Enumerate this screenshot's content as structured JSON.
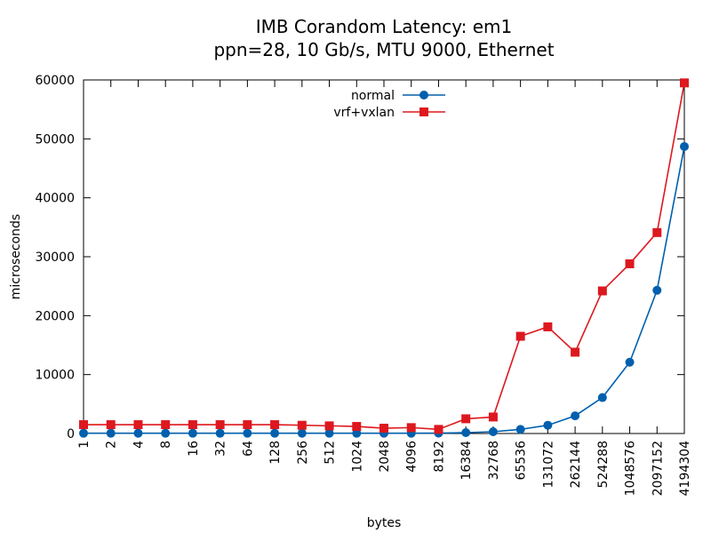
{
  "chart_data": {
    "type": "line",
    "title": "IMB Corandom Latency: em1",
    "subtitle": "ppn=28, 10 Gb/s, MTU 9000, Ethernet",
    "xlabel": "bytes",
    "ylabel": "microseconds",
    "ylim": [
      0,
      60000
    ],
    "yticks": [
      "0",
      "10000",
      "20000",
      "30000",
      "40000",
      "50000",
      "60000"
    ],
    "categories": [
      "1",
      "2",
      "4",
      "8",
      "16",
      "32",
      "64",
      "128",
      "256",
      "512",
      "1024",
      "2048",
      "4096",
      "8192",
      "16384",
      "32768",
      "65536",
      "131072",
      "262144",
      "524288",
      "1048576",
      "2097152",
      "4194304"
    ],
    "grid": false,
    "legend_position": "top-center",
    "series": [
      {
        "name": "normal",
        "color": "#0060ad",
        "marker": "circle",
        "values": [
          50,
          50,
          50,
          50,
          50,
          50,
          50,
          50,
          50,
          50,
          50,
          50,
          50,
          60,
          150,
          300,
          700,
          1400,
          3000,
          6100,
          12100,
          24300,
          48700
        ]
      },
      {
        "name": "vrf+vxlan",
        "color": "#dd181f",
        "marker": "square",
        "values": [
          1500,
          1500,
          1500,
          1500,
          1500,
          1500,
          1500,
          1500,
          1400,
          1300,
          1200,
          900,
          1000,
          700,
          2500,
          2800,
          16500,
          18100,
          13800,
          24200,
          28800,
          34100,
          59500
        ]
      }
    ]
  }
}
